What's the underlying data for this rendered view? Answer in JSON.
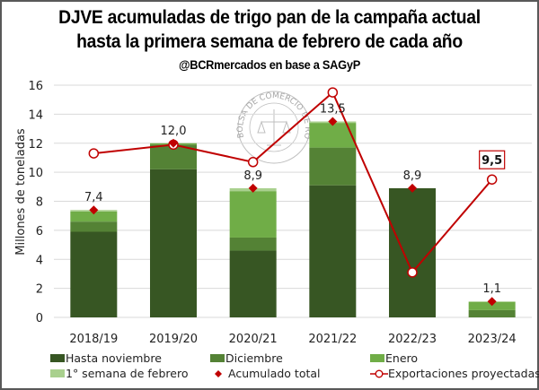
{
  "title_line1": "DJVE acumuladas de trigo pan de la campaña actual",
  "title_line2": "hasta la primera semana de febrero de cada año",
  "subtitle": "@BCRmercados en base a SAGyP",
  "watermark": "BOLSA DE COMERCIO DE ROSARIO",
  "colors": {
    "hasta_noviembre": "#375623",
    "diciembre": "#548235",
    "enero": "#70AD47",
    "febrero": "#A9D08E",
    "acumulado": "#C00000",
    "exportaciones": "#C00000",
    "grid": "#D9D9D9"
  },
  "chart_data": {
    "type": "bar",
    "stacked": true,
    "title": "DJVE acumuladas de trigo pan de la campaña actual hasta la primera semana de febrero de cada año",
    "subtitle": "@BCRmercados en base a SAGyP",
    "xlabel": "",
    "ylabel": "Millones de toneladas",
    "ylim": [
      0,
      16
    ],
    "yticks": [
      0,
      2,
      4,
      6,
      8,
      10,
      12,
      14,
      16
    ],
    "grid": true,
    "legend_position": "bottom",
    "categories": [
      "2018/19",
      "2019/20",
      "2020/21",
      "2021/22",
      "2022/23",
      "2023/24"
    ],
    "series": [
      {
        "name": "Hasta noviembre",
        "kind": "bar",
        "values": [
          5.9,
          10.2,
          4.6,
          9.1,
          8.9,
          0.0
        ]
      },
      {
        "name": "Diciembre",
        "kind": "bar",
        "values": [
          0.7,
          1.7,
          0.9,
          2.6,
          0.0,
          0.5
        ]
      },
      {
        "name": "Enero",
        "kind": "bar",
        "values": [
          0.7,
          0.1,
          3.2,
          1.7,
          0.0,
          0.55
        ]
      },
      {
        "name": "1° semana de febrero",
        "kind": "bar",
        "values": [
          0.1,
          0.0,
          0.2,
          0.1,
          0.0,
          0.05
        ]
      },
      {
        "name": "Acumulado total",
        "kind": "marker",
        "values": [
          7.4,
          12.0,
          8.9,
          13.5,
          8.9,
          1.1
        ],
        "labels": [
          "7,4",
          "12,0",
          "8,9",
          "13,5",
          "8,9",
          "1,1"
        ]
      },
      {
        "name": "Exportaciones proyectadas",
        "kind": "line",
        "values": [
          11.3,
          11.9,
          10.7,
          15.5,
          3.1,
          9.5
        ],
        "highlight_label": {
          "index": 5,
          "text": "9,5"
        }
      }
    ]
  }
}
